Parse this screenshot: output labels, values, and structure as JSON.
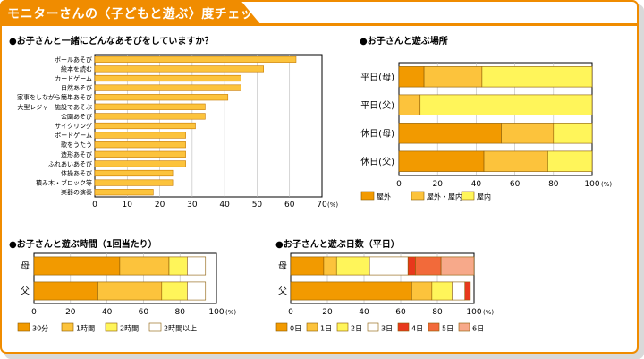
{
  "page_title": "モニターさんの〈子どもと遊ぶ〉度チェック",
  "colors": {
    "frame": "#f08c00",
    "bar_fill": "#fcc33c",
    "bar_stroke": "#c77a00",
    "outdoor": "#f29a00",
    "mixed": "#fcc33c",
    "indoor": "#fff55a",
    "white": "#ffffff",
    "red": "#e8381c",
    "coral": "#f26a3a",
    "salmon": "#f7a98a"
  },
  "chart_data": [
    {
      "type": "bar",
      "orientation": "horizontal",
      "title": "●お子さんと一緒にどんなあそびをしていますか？",
      "categories": [
        "ボールあそび",
        "絵本を読む",
        "カードゲーム",
        "自然あそび",
        "家事をしながら簡単あそび",
        "大型レジャー施設であそぶ",
        "公園あそび",
        "サイクリング",
        "ボードゲーム",
        "歌をうたう",
        "造形あそび",
        "ふれあいあそび",
        "体操あそび",
        "積み木・ブロック等",
        "楽器の演奏"
      ],
      "values": [
        62,
        52,
        45,
        45,
        41,
        34,
        34,
        31,
        28,
        28,
        28,
        28,
        24,
        24,
        18
      ],
      "xlim": [
        0,
        70
      ],
      "xticks": [
        0,
        10,
        20,
        30,
        40,
        50,
        60,
        70
      ],
      "unit": "(%)"
    },
    {
      "type": "bar",
      "orientation": "horizontal",
      "stacked": true,
      "title": "●お子さんと遊ぶ場所",
      "categories": [
        "平日(母)",
        "平日(父)",
        "休日(母)",
        "休日(父)"
      ],
      "series": [
        {
          "name": "屋外",
          "values": [
            13,
            0,
            53,
            44
          ]
        },
        {
          "name": "屋外・屋内",
          "values": [
            30,
            11,
            27,
            33
          ]
        },
        {
          "name": "屋内",
          "values": [
            57,
            89,
            20,
            23
          ]
        }
      ],
      "xlim": [
        0,
        100
      ],
      "xticks": [
        0,
        20,
        40,
        60,
        80,
        100
      ],
      "unit": "(%)"
    },
    {
      "type": "bar",
      "orientation": "horizontal",
      "stacked": true,
      "title": "●お子さんと遊ぶ時間（1回当たり）",
      "categories": [
        "母",
        "父"
      ],
      "series": [
        {
          "name": "30分",
          "values": [
            47,
            35
          ]
        },
        {
          "name": "1時間",
          "values": [
            27,
            35
          ]
        },
        {
          "name": "2時間",
          "values": [
            10,
            14
          ]
        },
        {
          "name": "2時間以上",
          "values": [
            10,
            10
          ]
        }
      ],
      "xlim": [
        0,
        100
      ],
      "xticks": [
        0,
        20,
        40,
        60,
        80,
        100
      ],
      "unit": "(%)"
    },
    {
      "type": "bar",
      "orientation": "horizontal",
      "stacked": true,
      "title": "●お子さんと遊ぶ日数（平日）",
      "categories": [
        "母",
        "父"
      ],
      "series": [
        {
          "name": "0日",
          "values": [
            18,
            66
          ]
        },
        {
          "name": "1日",
          "values": [
            7,
            11
          ]
        },
        {
          "name": "2日",
          "values": [
            18,
            11
          ]
        },
        {
          "name": "3日",
          "values": [
            21,
            7
          ]
        },
        {
          "name": "4日",
          "values": [
            4,
            3
          ]
        },
        {
          "name": "5日",
          "values": [
            14,
            0
          ]
        },
        {
          "name": "6日",
          "values": [
            18,
            0
          ]
        }
      ],
      "xlim": [
        0,
        100
      ],
      "xticks": [
        0,
        20,
        40,
        60,
        80,
        100
      ],
      "unit": "(%)"
    }
  ]
}
